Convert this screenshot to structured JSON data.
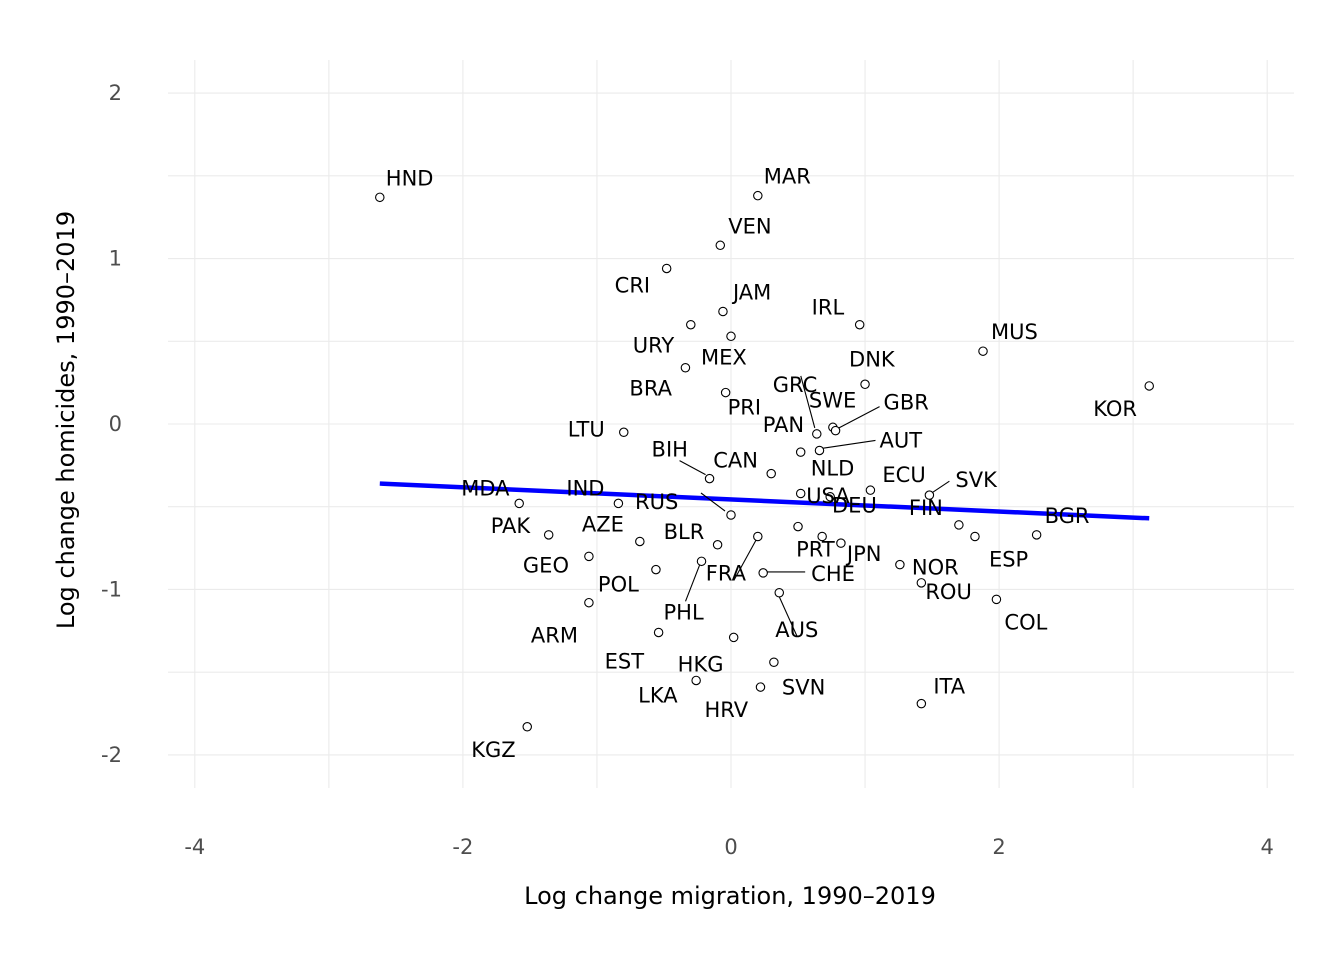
{
  "chart_data": {
    "type": "scatter",
    "title": "",
    "xlabel": "Log change migration, 1990–2019",
    "ylabel": "Log change homicides, 1990–2019",
    "xlim": [
      -4.2,
      4.2
    ],
    "ylim": [
      -2.2,
      2.2
    ],
    "xticks": [
      -4,
      -2,
      0,
      2,
      4
    ],
    "yticks": [
      -2,
      -1,
      0,
      1,
      2
    ],
    "xtick_labels": [
      "-4",
      "-2",
      "0",
      "2",
      "4"
    ],
    "ytick_labels": [
      "-2",
      "-1",
      "0",
      "1",
      "2"
    ],
    "fit_line": {
      "color": "#0000ff",
      "x": [
        -2.62,
        3.12
      ],
      "y": [
        -0.36,
        -0.57
      ]
    },
    "points": [
      {
        "label": "HND",
        "x": -2.62,
        "y": 1.37
      },
      {
        "label": "MAR",
        "x": 0.2,
        "y": 1.38
      },
      {
        "label": "VEN",
        "x": -0.08,
        "y": 1.08
      },
      {
        "label": "CRI",
        "x": -0.48,
        "y": 0.94
      },
      {
        "label": "JAM",
        "x": -0.06,
        "y": 0.68
      },
      {
        "label": "IRL",
        "x": 0.96,
        "y": 0.6
      },
      {
        "label": "URY",
        "x": -0.3,
        "y": 0.6
      },
      {
        "label": "MUS",
        "x": 1.88,
        "y": 0.44
      },
      {
        "label": "MEX",
        "x": 0.0,
        "y": 0.53
      },
      {
        "label": "BRA",
        "x": -0.34,
        "y": 0.34
      },
      {
        "label": "DNK",
        "x": 1.0,
        "y": 0.24
      },
      {
        "label": "KOR",
        "x": 3.12,
        "y": 0.23
      },
      {
        "label": "PRI",
        "x": -0.04,
        "y": 0.19
      },
      {
        "label": "GRC",
        "x": 0.64,
        "y": -0.06
      },
      {
        "label": "SWE",
        "x": 0.76,
        "y": -0.02
      },
      {
        "label": "GBR",
        "x": 0.78,
        "y": -0.04
      },
      {
        "label": "LTU",
        "x": -0.8,
        "y": -0.05
      },
      {
        "label": "PAN",
        "x": 0.52,
        "y": -0.17
      },
      {
        "label": "AUT",
        "x": 0.66,
        "y": -0.16
      },
      {
        "label": "BIH",
        "x": -0.16,
        "y": -0.33
      },
      {
        "label": "CAN",
        "x": 0.3,
        "y": -0.3
      },
      {
        "label": "NLD",
        "x": 0.52,
        "y": -0.42
      },
      {
        "label": "ECU",
        "x": 1.04,
        "y": -0.4
      },
      {
        "label": "SVK",
        "x": 1.48,
        "y": -0.43
      },
      {
        "label": "MDA",
        "x": -1.58,
        "y": -0.48
      },
      {
        "label": "IND",
        "x": -0.84,
        "y": -0.48
      },
      {
        "label": "RUS",
        "x": 0.0,
        "y": -0.55
      },
      {
        "label": "USA",
        "x": 0.74,
        "y": -0.44
      },
      {
        "label": "BGR",
        "x": 2.28,
        "y": -0.67
      },
      {
        "label": "PAK",
        "x": -1.36,
        "y": -0.67
      },
      {
        "label": "AZE",
        "x": -0.68,
        "y": -0.71
      },
      {
        "label": "BLR",
        "x": -0.1,
        "y": -0.73
      },
      {
        "label": "DEU",
        "x": 0.5,
        "y": -0.62
      },
      {
        "label": "FIN",
        "x": 1.7,
        "y": -0.61
      },
      {
        "label": "PRT",
        "x": 0.68,
        "y": -0.68
      },
      {
        "label": "ESP",
        "x": 1.82,
        "y": -0.68
      },
      {
        "label": "JPN",
        "x": 0.82,
        "y": -0.72
      },
      {
        "label": "NOR",
        "x": 1.26,
        "y": -0.85
      },
      {
        "label": "GEO",
        "x": -1.06,
        "y": -0.8
      },
      {
        "label": "POL",
        "x": -0.56,
        "y": -0.88
      },
      {
        "label": "FRA",
        "x": 0.2,
        "y": -0.68
      },
      {
        "label": "PHL",
        "x": -0.22,
        "y": -0.83
      },
      {
        "label": "CHE",
        "x": 0.24,
        "y": -0.9
      },
      {
        "label": "AUS",
        "x": 0.36,
        "y": -1.02
      },
      {
        "label": "ROU",
        "x": 1.42,
        "y": -0.96
      },
      {
        "label": "COL",
        "x": 1.98,
        "y": -1.06
      },
      {
        "label": "ARM",
        "x": -1.06,
        "y": -1.08
      },
      {
        "label": "EST",
        "x": -0.54,
        "y": -1.26
      },
      {
        "label": "HKG",
        "x": 0.02,
        "y": -1.29
      },
      {
        "label": "SVN",
        "x": 0.32,
        "y": -1.44
      },
      {
        "label": "LKA",
        "x": -0.26,
        "y": -1.55
      },
      {
        "label": "HRV",
        "x": 0.22,
        "y": -1.59
      },
      {
        "label": "ITA",
        "x": 1.42,
        "y": -1.69
      },
      {
        "label": "KGZ",
        "x": -1.52,
        "y": -1.83
      }
    ]
  }
}
